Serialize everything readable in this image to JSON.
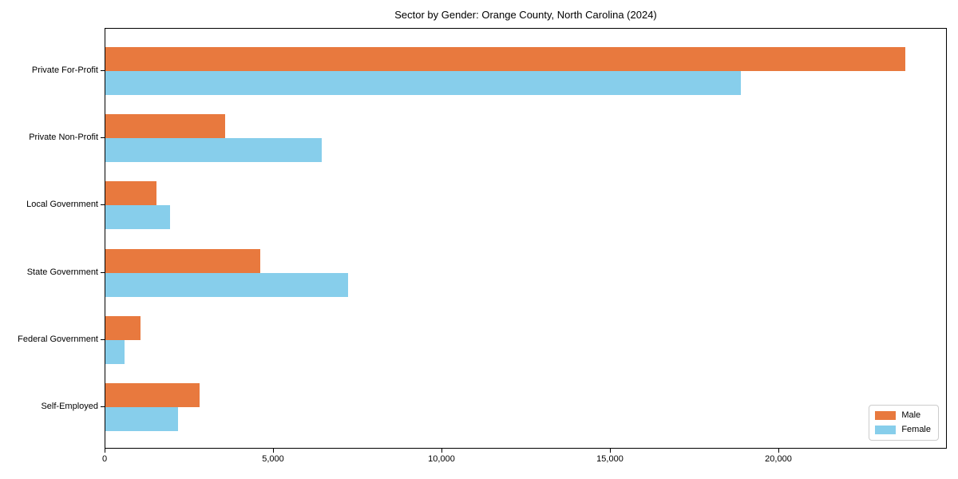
{
  "chart_data": {
    "type": "bar",
    "orientation": "horizontal",
    "title": "Sector by Gender: Orange County, North Carolina (2024)",
    "categories": [
      "Private For-Profit",
      "Private Non-Profit",
      "Local Government",
      "State Government",
      "Federal Government",
      "Self-Employed"
    ],
    "series": [
      {
        "name": "Male",
        "color": "#e8793e",
        "values": [
          23790,
          3550,
          1520,
          4610,
          1040,
          2810
        ]
      },
      {
        "name": "Female",
        "color": "#87ceeb",
        "values": [
          18890,
          6430,
          1930,
          7220,
          570,
          2160
        ]
      }
    ],
    "xlabel": "",
    "ylabel": "",
    "xlim": [
      0,
      25000
    ],
    "xticks": [
      0,
      5000,
      10000,
      15000,
      20000
    ],
    "xtick_labels": [
      "0",
      "5,000",
      "10,000",
      "15,000",
      "20,000"
    ],
    "grid": false,
    "legend_position": "lower right",
    "colors": {
      "axis": "#000000",
      "legend_border": "#cccccc",
      "background": "#ffffff"
    }
  }
}
